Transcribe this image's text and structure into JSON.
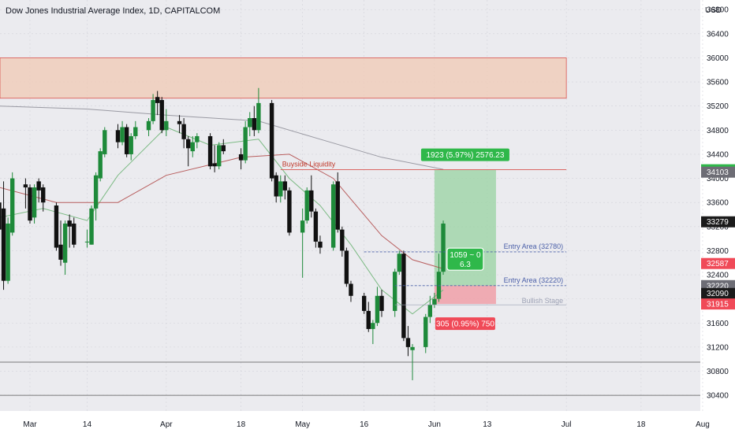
{
  "title": "Dow Jones Industrial Average Index, 1D, CAPITALCOM",
  "currency": "USD",
  "colors": {
    "background": "#ebebef",
    "up": "#1e8a3a",
    "down": "#111111",
    "grid": "#d3d3da",
    "zone_border": "#d9534f",
    "zone_fill": "#f0c9b4",
    "target_fill": "#9ed4a6",
    "stop_fill": "#f0a0a8",
    "ma_red": "#b85e5e",
    "ma_green": "#7cba84",
    "ma_gray": "#9a9aa3",
    "entry_line": "#4a5fa8",
    "label_green": "#2fb84a",
    "label_red": "#f04a58",
    "label_dark": "#1b1b1b",
    "label_gray": "#6d6d75"
  },
  "chart_data": {
    "type": "candlestick",
    "title": "Dow Jones Industrial Average Index, 1D, CAPITALCOM",
    "currency": "USD",
    "y_ticks": [
      30400,
      30800,
      31200,
      31600,
      32000,
      32400,
      32800,
      33200,
      33600,
      34000,
      34400,
      34800,
      35200,
      35600,
      36000,
      36400,
      36800
    ],
    "ylim": [
      30140,
      36960
    ],
    "x_ticks": [
      {
        "label": "Mar",
        "date": "2022-03-01"
      },
      {
        "label": "14",
        "date": "2022-03-14"
      },
      {
        "label": "Apr",
        "date": "2022-04-01"
      },
      {
        "label": "18",
        "date": "2022-04-18"
      },
      {
        "label": "May",
        "date": "2022-05-02"
      },
      {
        "label": "16",
        "date": "2022-05-16"
      },
      {
        "label": "Jun",
        "date": "2022-06-01"
      },
      {
        "label": "13",
        "date": "2022-06-13"
      },
      {
        "label": "Jul",
        "date": "2022-07-01"
      },
      {
        "label": "18",
        "date": "2022-07-18"
      },
      {
        "label": "Aug",
        "date": "2022-08-01"
      }
    ],
    "candles": [
      {
        "date": "2022-02-22",
        "o": 33600,
        "h": 33700,
        "l": 32650,
        "c": 33150
      },
      {
        "date": "2022-02-23",
        "o": 33500,
        "h": 33950,
        "l": 32150,
        "c": 32300
      },
      {
        "date": "2022-02-24",
        "o": 32300,
        "h": 33350,
        "l": 32250,
        "c": 33250
      },
      {
        "date": "2022-02-25",
        "o": 33100,
        "h": 34100,
        "l": 33050,
        "c": 34000
      },
      {
        "date": "2022-02-28",
        "o": 33900,
        "h": 34000,
        "l": 33500,
        "c": 33850
      },
      {
        "date": "2022-03-01",
        "o": 33850,
        "h": 33900,
        "l": 33250,
        "c": 33300
      },
      {
        "date": "2022-03-02",
        "o": 33350,
        "h": 33900,
        "l": 33250,
        "c": 33850
      },
      {
        "date": "2022-03-03",
        "o": 33950,
        "h": 34000,
        "l": 33600,
        "c": 33800
      },
      {
        "date": "2022-03-04",
        "o": 33850,
        "h": 33900,
        "l": 33450,
        "c": 33600
      },
      {
        "date": "2022-03-07",
        "o": 33550,
        "h": 33600,
        "l": 32800,
        "c": 32850
      },
      {
        "date": "2022-03-08",
        "o": 32900,
        "h": 33300,
        "l": 32550,
        "c": 32650
      },
      {
        "date": "2022-03-09",
        "o": 32600,
        "h": 33300,
        "l": 32400,
        "c": 33250
      },
      {
        "date": "2022-03-10",
        "o": 33300,
        "h": 33400,
        "l": 32850,
        "c": 33200
      },
      {
        "date": "2022-03-11",
        "o": 33250,
        "h": 33350,
        "l": 32850,
        "c": 32900
      },
      {
        "date": "2022-03-14",
        "o": 32950,
        "h": 33150,
        "l": 32850,
        "c": 32950
      },
      {
        "date": "2022-03-15",
        "o": 32900,
        "h": 33550,
        "l": 32900,
        "c": 33500
      },
      {
        "date": "2022-03-16",
        "o": 33500,
        "h": 34100,
        "l": 33300,
        "c": 34050
      },
      {
        "date": "2022-03-17",
        "o": 34000,
        "h": 34500,
        "l": 33950,
        "c": 34450
      },
      {
        "date": "2022-03-18",
        "o": 34400,
        "h": 34850,
        "l": 34350,
        "c": 34800
      },
      {
        "date": "2022-03-21",
        "o": 34800,
        "h": 34900,
        "l": 34500,
        "c": 34600
      },
      {
        "date": "2022-03-22",
        "o": 34600,
        "h": 34950,
        "l": 34550,
        "c": 34850
      },
      {
        "date": "2022-03-23",
        "o": 34850,
        "h": 34900,
        "l": 34350,
        "c": 34400
      },
      {
        "date": "2022-03-24",
        "o": 34400,
        "h": 34750,
        "l": 34300,
        "c": 34700
      },
      {
        "date": "2022-03-25",
        "o": 34700,
        "h": 34950,
        "l": 34650,
        "c": 34850
      },
      {
        "date": "2022-03-28",
        "o": 34800,
        "h": 35000,
        "l": 34700,
        "c": 34950
      },
      {
        "date": "2022-03-29",
        "o": 34950,
        "h": 35400,
        "l": 34900,
        "c": 35300
      },
      {
        "date": "2022-03-30",
        "o": 35350,
        "h": 35450,
        "l": 35050,
        "c": 35250
      },
      {
        "date": "2022-03-31",
        "o": 35300,
        "h": 35350,
        "l": 34750,
        "c": 34800
      },
      {
        "date": "2022-04-01",
        "o": 34800,
        "h": 35150,
        "l": 34700,
        "c": 34950
      },
      {
        "date": "2022-04-04",
        "o": 34950,
        "h": 35050,
        "l": 34750,
        "c": 34900
      },
      {
        "date": "2022-04-05",
        "o": 34900,
        "h": 35000,
        "l": 34500,
        "c": 34650
      },
      {
        "date": "2022-04-06",
        "o": 34650,
        "h": 34700,
        "l": 34200,
        "c": 34500
      },
      {
        "date": "2022-04-07",
        "o": 34450,
        "h": 34700,
        "l": 34350,
        "c": 34600
      },
      {
        "date": "2022-04-08",
        "o": 34600,
        "h": 34750,
        "l": 34500,
        "c": 34700
      },
      {
        "date": "2022-04-11",
        "o": 34700,
        "h": 34750,
        "l": 34150,
        "c": 34200
      },
      {
        "date": "2022-04-12",
        "o": 34250,
        "h": 34550,
        "l": 34100,
        "c": 34200
      },
      {
        "date": "2022-04-13",
        "o": 34200,
        "h": 34600,
        "l": 34150,
        "c": 34550
      },
      {
        "date": "2022-04-14",
        "o": 34550,
        "h": 34650,
        "l": 34400,
        "c": 34450
      },
      {
        "date": "2022-04-18",
        "o": 34400,
        "h": 34500,
        "l": 34150,
        "c": 34300
      },
      {
        "date": "2022-04-19",
        "o": 34300,
        "h": 34950,
        "l": 34250,
        "c": 34850
      },
      {
        "date": "2022-04-20",
        "o": 34850,
        "h": 35100,
        "l": 34700,
        "c": 35000
      },
      {
        "date": "2022-04-21",
        "o": 35000,
        "h": 35200,
        "l": 34700,
        "c": 34800
      },
      {
        "date": "2022-04-22",
        "o": 34800,
        "h": 35500,
        "l": 34750,
        "c": 35250
      },
      {
        "date": "2022-04-25",
        "o": 35250,
        "h": 35300,
        "l": 33950,
        "c": 34000
      },
      {
        "date": "2022-04-26",
        "o": 34050,
        "h": 34100,
        "l": 33600,
        "c": 33700
      },
      {
        "date": "2022-04-27",
        "o": 33700,
        "h": 34050,
        "l": 33600,
        "c": 33950
      },
      {
        "date": "2022-04-28",
        "o": 33950,
        "h": 34050,
        "l": 33650,
        "c": 33800
      },
      {
        "date": "2022-04-29",
        "o": 33800,
        "h": 33850,
        "l": 33050,
        "c": 33100
      },
      {
        "date": "2022-05-02",
        "o": 33100,
        "h": 33500,
        "l": 32350,
        "c": 33300
      },
      {
        "date": "2022-05-03",
        "o": 33300,
        "h": 33850,
        "l": 33250,
        "c": 33800
      },
      {
        "date": "2022-05-04",
        "o": 33800,
        "h": 34050,
        "l": 33350,
        "c": 33450
      },
      {
        "date": "2022-05-05",
        "o": 33450,
        "h": 33500,
        "l": 32850,
        "c": 32950
      },
      {
        "date": "2022-05-06",
        "o": 32950,
        "h": 33050,
        "l": 32750,
        "c": 32850
      },
      {
        "date": "2022-05-09",
        "o": 32850,
        "h": 33950,
        "l": 32800,
        "c": 33900
      },
      {
        "date": "2022-05-10",
        "o": 33950,
        "h": 34100,
        "l": 33100,
        "c": 33150
      },
      {
        "date": "2022-05-11",
        "o": 33150,
        "h": 33200,
        "l": 32700,
        "c": 32800
      },
      {
        "date": "2022-05-12",
        "o": 32800,
        "h": 32850,
        "l": 32200,
        "c": 32250
      },
      {
        "date": "2022-05-13",
        "o": 32250,
        "h": 32300,
        "l": 31950,
        "c": 32050
      },
      {
        "date": "2022-05-16",
        "o": 32050,
        "h": 32100,
        "l": 31750,
        "c": 31800
      },
      {
        "date": "2022-05-17",
        "o": 31800,
        "h": 31950,
        "l": 31450,
        "c": 31500
      },
      {
        "date": "2022-05-18",
        "o": 31500,
        "h": 31650,
        "l": 31250,
        "c": 31600
      },
      {
        "date": "2022-05-19",
        "o": 31600,
        "h": 32200,
        "l": 31550,
        "c": 32050
      },
      {
        "date": "2022-05-20",
        "o": 32050,
        "h": 32150,
        "l": 31700,
        "c": 31800
      },
      {
        "date": "2022-05-23",
        "o": 31800,
        "h": 32500,
        "l": 31700,
        "c": 32450
      },
      {
        "date": "2022-05-24",
        "o": 32450,
        "h": 32800,
        "l": 32400,
        "c": 32750
      },
      {
        "date": "2022-05-25",
        "o": 32750,
        "h": 32800,
        "l": 31300,
        "c": 31350
      },
      {
        "date": "2022-05-26",
        "o": 31350,
        "h": 31550,
        "l": 31050,
        "c": 31200
      },
      {
        "date": "2022-05-27",
        "o": 31150,
        "h": 31250,
        "l": 30650,
        "c": 31200
      },
      {
        "date": "2022-05-30",
        "o": 31200,
        "h": 31750,
        "l": 31100,
        "c": 31700
      },
      {
        "date": "2022-05-31",
        "o": 31700,
        "h": 32050,
        "l": 31600,
        "c": 31900
      },
      {
        "date": "2022-06-01",
        "o": 31900,
        "h": 32100,
        "l": 31850,
        "c": 32000
      },
      {
        "date": "2022-06-02",
        "o": 32000,
        "h": 32750,
        "l": 31950,
        "c": 32450
      },
      {
        "date": "2022-06-03",
        "o": 32450,
        "h": 33300,
        "l": 32400,
        "c": 33250
      }
    ],
    "moving_averages": [
      {
        "role": "fast",
        "points": [
          [
            "2022-02-22",
            33350
          ],
          [
            "2022-03-04",
            33500
          ],
          [
            "2022-03-14",
            33300
          ],
          [
            "2022-03-21",
            34050
          ],
          [
            "2022-04-01",
            34850
          ],
          [
            "2022-04-11",
            34550
          ],
          [
            "2022-04-22",
            34650
          ],
          [
            "2022-04-29",
            34000
          ],
          [
            "2022-05-06",
            33550
          ],
          [
            "2022-05-13",
            32900
          ],
          [
            "2022-05-20",
            32150
          ],
          [
            "2022-05-27",
            31750
          ],
          [
            "2022-06-03",
            32150
          ]
        ]
      },
      {
        "role": "medium",
        "points": [
          [
            "2022-02-22",
            33850
          ],
          [
            "2022-03-07",
            33600
          ],
          [
            "2022-03-21",
            33600
          ],
          [
            "2022-04-01",
            34050
          ],
          [
            "2022-04-18",
            34350
          ],
          [
            "2022-04-29",
            34400
          ],
          [
            "2022-05-09",
            34000
          ],
          [
            "2022-05-20",
            33050
          ],
          [
            "2022-05-27",
            32650
          ],
          [
            "2022-06-03",
            32500
          ]
        ]
      },
      {
        "role": "slow",
        "points": [
          [
            "2022-02-22",
            35200
          ],
          [
            "2022-03-14",
            35150
          ],
          [
            "2022-04-01",
            35050
          ],
          [
            "2022-04-22",
            34950
          ],
          [
            "2022-05-06",
            34650
          ],
          [
            "2022-05-20",
            34350
          ],
          [
            "2022-06-03",
            34150
          ]
        ]
      }
    ],
    "supply_zone": {
      "top": 36000,
      "bottom": 35330,
      "from": "2022-02-22",
      "to": "2022-07-01"
    },
    "lower_lines": [
      30950,
      30400
    ],
    "buyside_liquidity": {
      "label": "Buyside Liquidity",
      "value": 34143,
      "from": "2022-04-27",
      "to": "2022-07-01"
    },
    "entry_lines": [
      {
        "label": "Entry Area (32780)",
        "value": 32780,
        "from": "2022-05-16",
        "to": "2022-07-01"
      },
      {
        "label": "Entry Area (32220)",
        "value": 32220,
        "from": "2022-05-23",
        "to": "2022-07-01"
      }
    ],
    "bullish_stage": {
      "label": "Bullish Stage",
      "value": 31940
    },
    "position": {
      "entry": 32220,
      "target": 34143,
      "stop": 31915,
      "from": "2022-06-01",
      "to": "2022-06-15",
      "target_label": "1923 (5.97%) 2576.23",
      "stop_label": "305 (0.95%) 750",
      "mid_label_line1": "1059 ~ 0",
      "mid_label_line2": "6.3",
      "mid_value": 32620
    },
    "price_labels": [
      {
        "text": "34143",
        "value": 34143,
        "style": "green"
      },
      {
        "text": "34103",
        "value": 34103,
        "style": "gray"
      },
      {
        "text": "33279",
        "value": 33279,
        "style": "dark"
      },
      {
        "text": "32587",
        "value": 32587,
        "style": "red"
      },
      {
        "text": "32220",
        "value": 32220,
        "style": "gray"
      },
      {
        "text": "32090",
        "value": 32090,
        "style": "dark"
      },
      {
        "text": "31915",
        "value": 31915,
        "style": "red"
      }
    ]
  }
}
